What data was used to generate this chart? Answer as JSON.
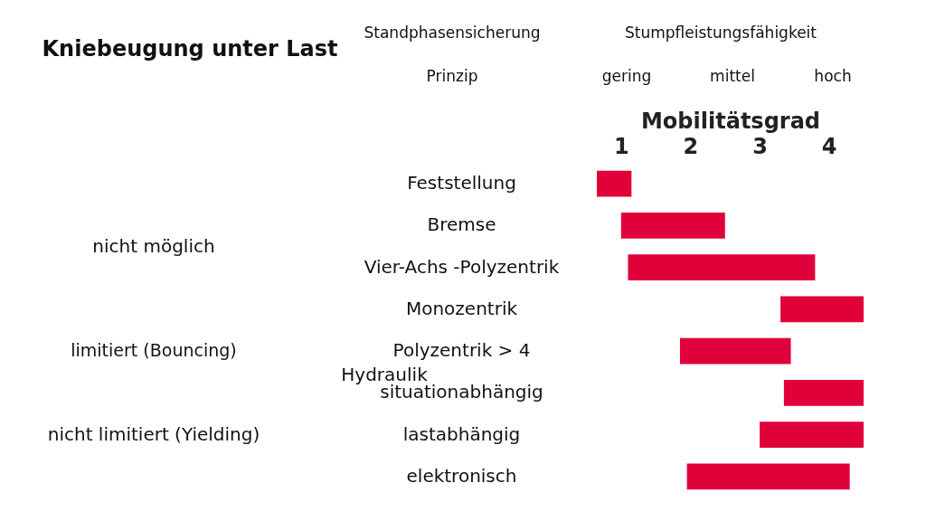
{
  "chart_data": {
    "type": "bar",
    "orientation": "horizontal",
    "categories": [
      "Feststellung",
      "Bremse",
      "Vier-Achs -Polyzentrik",
      "Monozentrik",
      "Polyzentrik > 4",
      "situationabhängig",
      "lastabhängig",
      "elektronisch"
    ],
    "base": [
      0.65,
      1.0,
      1.1,
      3.3,
      1.85,
      3.35,
      3.0,
      1.95
    ],
    "values": [
      0.5,
      1.5,
      2.7,
      1.2,
      1.6,
      1.15,
      1.5,
      2.35
    ],
    "color": "#e0003a",
    "xlabel": "Mobilitätsgrad",
    "xlim": [
      0.65,
      4.5
    ],
    "xticks": [
      1,
      2,
      3,
      4
    ],
    "annotations": [
      "Kniebeugung unter Last",
      "Standphasensicherung",
      "Prinzip",
      "nicht möglich",
      "limitiert (Bouncing)",
      "nicht limitiert (Yielding)",
      "Hydraulik",
      "Stumpfleistungsfähigkeit",
      "gering",
      "mittel",
      "hoch"
    ],
    "grid": false
  }
}
